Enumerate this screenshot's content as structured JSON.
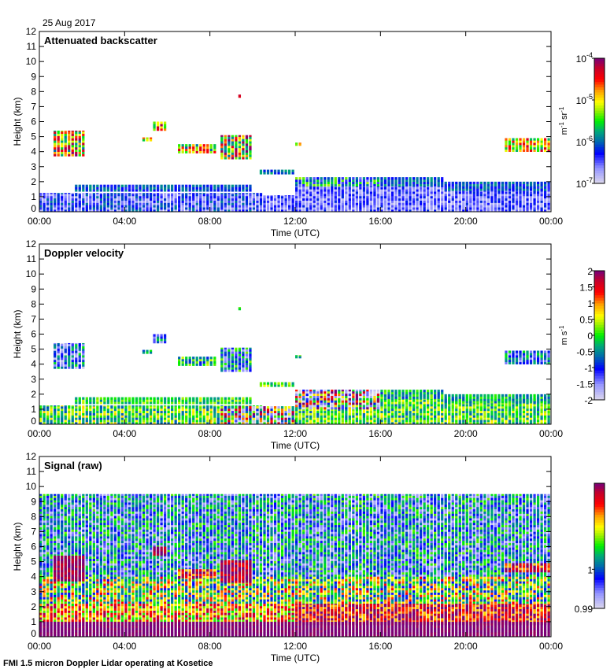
{
  "date_label": "25 Aug 2017",
  "footer": "FMI 1.5 micron Doppler Lidar operating at Kosetice",
  "chart_data": [
    {
      "type": "heatmap",
      "title": "Attenuated backscatter",
      "xlabel": "Time (UTC)",
      "ylabel": "Height (km)",
      "xlim": [
        0,
        24
      ],
      "ylim": [
        0,
        12
      ],
      "xticks": [
        0,
        4,
        8,
        12,
        16,
        20,
        24
      ],
      "xtick_labels": [
        "00:00",
        "04:00",
        "08:00",
        "12:00",
        "16:00",
        "20:00",
        "00:00"
      ],
      "yticks": [
        0,
        1,
        2,
        3,
        4,
        5,
        6,
        7,
        8,
        9,
        10,
        11,
        12
      ],
      "ytick_labels": [
        "0",
        "1",
        "2",
        "3",
        "4",
        "5",
        "6",
        "7",
        "8",
        "9",
        "10",
        "11",
        "12"
      ],
      "colorbar": {
        "scale": "log10",
        "range": [
          -7,
          -4
        ],
        "ticks": [
          -7,
          -6,
          -5,
          -4
        ],
        "tick_labels": [
          "10-7",
          "10-6",
          "10-5",
          "10-4"
        ],
        "tick_base": "10",
        "tick_exps": [
          "-7",
          "-6",
          "-5",
          "-4"
        ],
        "units": "m-1 sr-1",
        "units_parts": [
          "m",
          "-1",
          " sr",
          "-1"
        ]
      },
      "features": [
        {
          "t": [
            0,
            10.5
          ],
          "h": [
            0,
            1.25
          ],
          "v": -6.35,
          "noise": 0.45
        },
        {
          "t": [
            1.6,
            10
          ],
          "h": [
            1.35,
            1.8
          ],
          "v": -6.1,
          "noise": 0.3
        },
        {
          "t": [
            10.5,
            12
          ],
          "h": [
            0,
            1.1
          ],
          "v": -6.5,
          "noise": 0.3
        },
        {
          "t": [
            10.2,
            12
          ],
          "h": [
            2.5,
            2.8
          ],
          "v": -6.0,
          "noise": 0.35
        },
        {
          "t": [
            12,
            24
          ],
          "h": [
            0,
            1.7
          ],
          "v": -6.5,
          "noise": 0.35
        },
        {
          "t": [
            12,
            16
          ],
          "h": [
            1.7,
            2.3
          ],
          "v": -5.9,
          "noise": 0.7
        },
        {
          "t": [
            16,
            19
          ],
          "h": [
            1.7,
            2.3
          ],
          "v": -6.05,
          "noise": 0.3
        },
        {
          "t": [
            19,
            24
          ],
          "h": [
            1.4,
            2.0
          ],
          "v": -6.1,
          "noise": 0.3
        },
        {
          "t": [
            0.6,
            2.1
          ],
          "h": [
            3.7,
            5.4
          ],
          "v": -5.0,
          "noise": 1.0
        },
        {
          "t": [
            4.8,
            5.2
          ],
          "h": [
            4.7,
            4.95
          ],
          "v": -5.0,
          "noise": 0.8
        },
        {
          "t": [
            5.2,
            6.0
          ],
          "h": [
            5.4,
            6.0
          ],
          "v": -4.9,
          "noise": 0.8
        },
        {
          "t": [
            6.5,
            8.2
          ],
          "h": [
            3.9,
            4.5
          ],
          "v": -5.2,
          "noise": 0.9
        },
        {
          "t": [
            8.5,
            10.0
          ],
          "h": [
            3.5,
            5.1
          ],
          "v": -5.0,
          "noise": 1.0
        },
        {
          "t": [
            9.2,
            9.5
          ],
          "h": [
            7.6,
            7.8
          ],
          "v": -4.4,
          "noise": 0.4
        },
        {
          "t": [
            12.0,
            12.2
          ],
          "h": [
            4.4,
            4.6
          ],
          "v": -5.1,
          "noise": 0.6
        },
        {
          "t": [
            21.7,
            24
          ],
          "h": [
            4.0,
            4.9
          ],
          "v": -5.0,
          "noise": 0.8
        }
      ]
    },
    {
      "type": "heatmap",
      "title": "Doppler velocity",
      "xlabel": "Time (UTC)",
      "ylabel": "Height (km)",
      "xlim": [
        0,
        24
      ],
      "ylim": [
        0,
        12
      ],
      "xticks": [
        0,
        4,
        8,
        12,
        16,
        20,
        24
      ],
      "xtick_labels": [
        "00:00",
        "04:00",
        "08:00",
        "12:00",
        "16:00",
        "20:00",
        "00:00"
      ],
      "yticks": [
        0,
        1,
        2,
        3,
        4,
        5,
        6,
        7,
        8,
        9,
        10,
        11,
        12
      ],
      "ytick_labels": [
        "0",
        "1",
        "2",
        "3",
        "4",
        "5",
        "6",
        "7",
        "8",
        "9",
        "10",
        "11",
        "12"
      ],
      "colorbar": {
        "scale": "linear",
        "range": [
          -2,
          2
        ],
        "ticks": [
          -2,
          -1.5,
          -1,
          -0.5,
          0,
          0.5,
          1,
          1.5,
          2
        ],
        "tick_labels": [
          "-2",
          "-1.5",
          "-1",
          "-0.5",
          "0",
          "0.5",
          "1",
          "1.5",
          "2"
        ],
        "units": "m s-1",
        "units_parts": [
          "m s",
          "-1"
        ]
      },
      "features": [
        {
          "t": [
            0,
            10.5
          ],
          "h": [
            0,
            1.25
          ],
          "v": 0.0,
          "noise": 0.8
        },
        {
          "t": [
            1.6,
            10
          ],
          "h": [
            1.35,
            1.8
          ],
          "v": 0.0,
          "noise": 0.5
        },
        {
          "t": [
            8.5,
            12
          ],
          "h": [
            0,
            1.2
          ],
          "v": 0.0,
          "noise": 2.2
        },
        {
          "t": [
            10.2,
            12
          ],
          "h": [
            2.5,
            2.8
          ],
          "v": 0.0,
          "noise": 0.6
        },
        {
          "t": [
            12,
            24
          ],
          "h": [
            0,
            1.7
          ],
          "v": 0.0,
          "noise": 0.7
        },
        {
          "t": [
            12,
            16
          ],
          "h": [
            1.0,
            2.3
          ],
          "v": 0.0,
          "noise": 2.5
        },
        {
          "t": [
            16,
            19
          ],
          "h": [
            1.7,
            2.3
          ],
          "v": -0.3,
          "noise": 0.6
        },
        {
          "t": [
            19,
            24
          ],
          "h": [
            1.4,
            2.0
          ],
          "v": -0.3,
          "noise": 0.5
        },
        {
          "t": [
            0.6,
            2.1
          ],
          "h": [
            3.7,
            5.4
          ],
          "v": -1.0,
          "noise": 1.0
        },
        {
          "t": [
            4.8,
            5.2
          ],
          "h": [
            4.7,
            4.95
          ],
          "v": -0.5,
          "noise": 0.8
        },
        {
          "t": [
            5.2,
            6.0
          ],
          "h": [
            5.4,
            6.0
          ],
          "v": -0.8,
          "noise": 0.8
        },
        {
          "t": [
            6.5,
            8.2
          ],
          "h": [
            3.9,
            4.5
          ],
          "v": -0.2,
          "noise": 0.8
        },
        {
          "t": [
            8.5,
            10.0
          ],
          "h": [
            3.5,
            5.1
          ],
          "v": -0.7,
          "noise": 1.0
        },
        {
          "t": [
            9.2,
            9.5
          ],
          "h": [
            7.6,
            7.8
          ],
          "v": -0.3,
          "noise": 0.5
        },
        {
          "t": [
            12.0,
            12.2
          ],
          "h": [
            4.4,
            4.6
          ],
          "v": 0.0,
          "noise": 0.6
        },
        {
          "t": [
            21.7,
            24
          ],
          "h": [
            4.0,
            4.9
          ],
          "v": -0.8,
          "noise": 0.8
        }
      ]
    },
    {
      "type": "heatmap",
      "title": "Signal (raw)",
      "xlabel": "Time (UTC)",
      "ylabel": "Height (km)",
      "xlim": [
        0,
        24
      ],
      "ylim": [
        0,
        12
      ],
      "xticks": [
        0,
        4,
        8,
        12,
        16,
        20,
        24
      ],
      "xtick_labels": [
        "00:00",
        "04:00",
        "08:00",
        "12:00",
        "16:00",
        "20:00",
        "00:00"
      ],
      "yticks": [
        0,
        1,
        2,
        3,
        4,
        5,
        6,
        7,
        8,
        9,
        10,
        11,
        12
      ],
      "ytick_labels": [
        "0",
        "1",
        "2",
        "3",
        "4",
        "5",
        "6",
        "7",
        "8",
        "9",
        "10",
        "11",
        "12"
      ],
      "colorbar": {
        "scale": "linear",
        "range": [
          0.99,
          1.022
        ],
        "ticks": [
          0.99,
          1
        ],
        "tick_labels": [
          "0.99",
          "1"
        ],
        "units": ""
      },
      "features": [
        {
          "t": [
            0,
            24
          ],
          "h": [
            4.0,
            9.5
          ],
          "v": 1.0,
          "noise": 0.008
        },
        {
          "t": [
            0,
            24
          ],
          "h": [
            2.2,
            4.0
          ],
          "v": 1.007,
          "noise": 0.01
        },
        {
          "t": [
            0,
            24
          ],
          "h": [
            1.0,
            2.2
          ],
          "v": 1.013,
          "noise": 0.008
        },
        {
          "t": [
            12,
            24
          ],
          "h": [
            0.8,
            2.2
          ],
          "v": 1.018,
          "noise": 0.006
        },
        {
          "t": [
            0,
            24
          ],
          "h": [
            0,
            1.0
          ],
          "v": 1.022,
          "noise": 0.001
        },
        {
          "t": [
            0.6,
            2.1
          ],
          "h": [
            3.7,
            5.4
          ],
          "v": 1.021,
          "noise": 0.002
        },
        {
          "t": [
            5.2,
            6.0
          ],
          "h": [
            5.4,
            6.0
          ],
          "v": 1.021,
          "noise": 0.002
        },
        {
          "t": [
            6.5,
            8.2
          ],
          "h": [
            3.9,
            4.5
          ],
          "v": 1.017,
          "noise": 0.006
        },
        {
          "t": [
            8.5,
            10.0
          ],
          "h": [
            3.6,
            5.1
          ],
          "v": 1.02,
          "noise": 0.004
        },
        {
          "t": [
            21.7,
            24
          ],
          "h": [
            4.3,
            4.9
          ],
          "v": 1.018,
          "noise": 0.006
        }
      ]
    }
  ]
}
